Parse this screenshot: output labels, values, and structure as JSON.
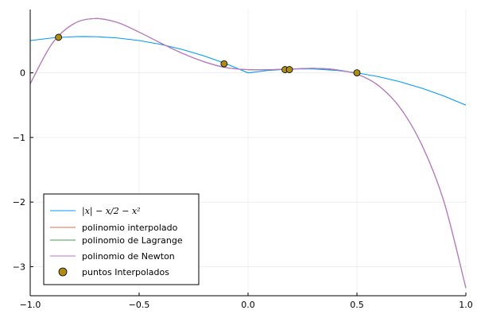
{
  "chart_data": {
    "type": "line",
    "xlim": [
      -1.0,
      1.0
    ],
    "ylim": [
      -3.45,
      0.98
    ],
    "xticks": [
      -1.0,
      -0.5,
      0.0,
      0.5,
      1.0
    ],
    "xtick_labels": [
      "−1.0",
      "−0.5",
      "0.0",
      "0.5",
      "1.0"
    ],
    "yticks": [
      -3,
      -2,
      -1,
      0
    ],
    "ytick_labels": [
      "−3",
      "−2",
      "−1",
      "0"
    ],
    "grid": true,
    "legend_position": "bottom-left",
    "series": [
      {
        "name": "|x| − x/2 − x²",
        "color": "#009af9",
        "kind": "line",
        "x": [
          -1.0,
          -0.9,
          -0.8,
          -0.75,
          -0.7,
          -0.6,
          -0.5,
          -0.4,
          -0.3,
          -0.2,
          -0.1,
          0.0,
          0.1,
          0.2,
          0.3,
          0.4,
          0.5,
          0.6,
          0.7,
          0.8,
          0.9,
          1.0
        ],
        "y": [
          0.5,
          0.54,
          0.56,
          0.5625,
          0.56,
          0.54,
          0.5,
          0.44,
          0.36,
          0.26,
          0.14,
          0.0,
          0.04,
          0.06,
          0.06,
          0.04,
          0.0,
          -0.06,
          -0.14,
          -0.24,
          -0.36,
          -0.5
        ]
      },
      {
        "name": "polinomio interpolado",
        "color": "#e26f46",
        "kind": "line",
        "x": [
          -1.0,
          -0.9,
          -0.8,
          -0.7,
          -0.6,
          -0.5,
          -0.4,
          -0.3,
          -0.2,
          -0.1,
          0.0,
          0.1,
          0.2,
          0.3,
          0.4,
          0.5,
          0.6,
          0.7,
          0.8,
          0.9,
          1.0
        ],
        "y": [
          -0.17,
          0.45,
          0.76,
          0.84,
          0.78,
          0.63,
          0.46,
          0.3,
          0.17,
          0.08,
          0.05,
          0.05,
          0.06,
          0.07,
          0.05,
          -0.02,
          -0.2,
          -0.55,
          -1.13,
          -2.0,
          -3.33
        ]
      },
      {
        "name": "polinomio de Lagrange",
        "color": "#3da44d",
        "kind": "line",
        "x": [
          -1.0,
          -0.9,
          -0.8,
          -0.7,
          -0.6,
          -0.5,
          -0.4,
          -0.3,
          -0.2,
          -0.1,
          0.0,
          0.1,
          0.2,
          0.3,
          0.4,
          0.5,
          0.6,
          0.7,
          0.8,
          0.9,
          1.0
        ],
        "y": [
          -0.17,
          0.45,
          0.76,
          0.84,
          0.78,
          0.63,
          0.46,
          0.3,
          0.17,
          0.08,
          0.05,
          0.05,
          0.06,
          0.07,
          0.05,
          -0.02,
          -0.2,
          -0.55,
          -1.13,
          -2.0,
          -3.33
        ]
      },
      {
        "name": "polinomio de Newton",
        "color": "#c271d2",
        "kind": "line",
        "x": [
          -1.0,
          -0.9,
          -0.8,
          -0.7,
          -0.6,
          -0.5,
          -0.4,
          -0.3,
          -0.2,
          -0.1,
          0.0,
          0.1,
          0.2,
          0.3,
          0.4,
          0.5,
          0.6,
          0.7,
          0.8,
          0.9,
          1.0
        ],
        "y": [
          -0.17,
          0.45,
          0.76,
          0.84,
          0.78,
          0.63,
          0.46,
          0.3,
          0.17,
          0.08,
          0.05,
          0.05,
          0.06,
          0.07,
          0.05,
          -0.02,
          -0.2,
          -0.55,
          -1.13,
          -2.0,
          -3.33
        ]
      },
      {
        "name": "puntos Interpolados",
        "color": "#ac8d18",
        "kind": "scatter",
        "x": [
          -0.87,
          -0.11,
          0.17,
          0.19,
          0.5
        ],
        "y": [
          0.55,
          0.14,
          0.05,
          0.05,
          0.0
        ]
      }
    ]
  }
}
